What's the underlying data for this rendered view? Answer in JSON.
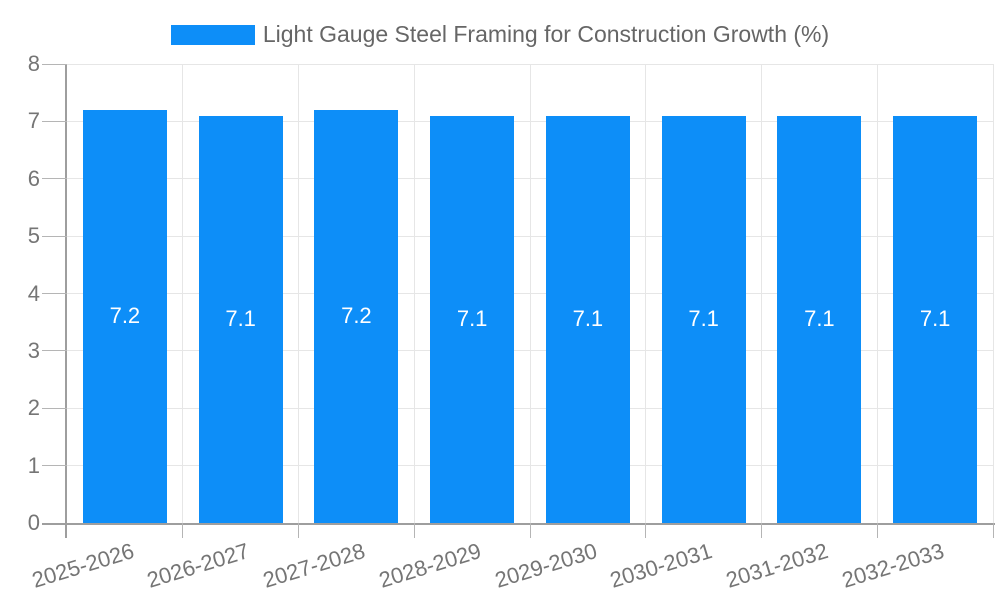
{
  "chart_data": {
    "type": "bar",
    "title": "Light Gauge Steel Framing for Construction Growth (%)",
    "legend": {
      "position": "top",
      "label": "Light Gauge Steel Framing for Construction Growth (%)"
    },
    "categories": [
      "2025-2026",
      "2026-2027",
      "2027-2028",
      "2028-2029",
      "2029-2030",
      "2030-2031",
      "2031-2032",
      "2032-2033"
    ],
    "values": [
      7.2,
      7.1,
      7.2,
      7.1,
      7.1,
      7.1,
      7.1,
      7.1
    ],
    "bar_labels": [
      "7.2",
      "7.1",
      "7.2",
      "7.1",
      "7.1",
      "7.1",
      "7.1",
      "7.1"
    ],
    "xlabel": "",
    "ylabel": "",
    "ylim": [
      0,
      8
    ],
    "y_ticks": [
      0,
      1,
      2,
      3,
      4,
      5,
      6,
      7,
      8
    ],
    "grid": true,
    "x_tick_rotation_deg": -17,
    "colors": {
      "bar": "#0d8ef8",
      "grid": "#e6e6e6",
      "axis": "#9e9e9e",
      "tick_mark": "#b5b5b5",
      "tick_text": "#757575",
      "title_text": "#666666",
      "bar_label_text": "#ffffff",
      "background": "#ffffff"
    }
  }
}
